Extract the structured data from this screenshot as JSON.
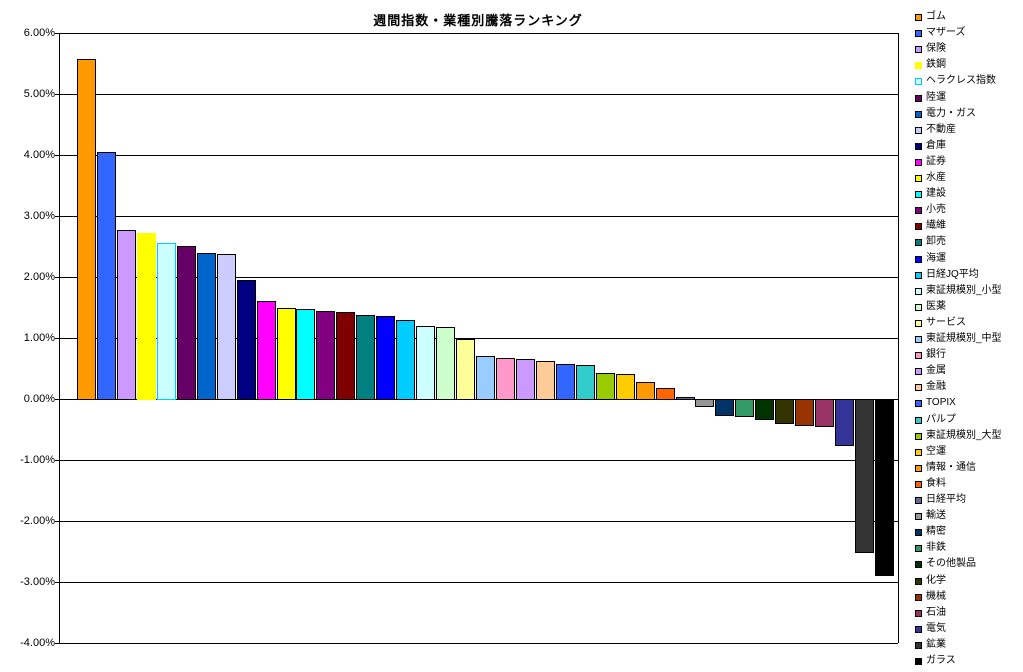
{
  "chart_data": {
    "type": "bar",
    "title": "週間指数・業種別騰落ランキング",
    "xlabel": "",
    "ylabel": "",
    "ylim": [
      -4,
      6
    ],
    "ytick_step": 1,
    "grid": true,
    "legend_position": "right",
    "y_tick_labels": [
      "6.00%",
      "5.00%",
      "4.00%",
      "3.00%",
      "2.00%",
      "1.00%",
      "0.00%",
      "-1.00%",
      "-2.00%",
      "-3.00%",
      "-4.00%"
    ],
    "categories": [
      "ゴム",
      "マザーズ",
      "保険",
      "鉄鋼",
      "ヘラクレス指数",
      "陸運",
      "電力・ガス",
      "不動産",
      "倉庫",
      "証券",
      "水産",
      "建設",
      "小売",
      "繊維",
      "卸売",
      "海運",
      "日経JQ平均",
      "東証規模別_小型",
      "医薬",
      "サービス",
      "東証規模別_中型",
      "銀行",
      "金属",
      "金融",
      "TOPIX",
      "パルプ",
      "東証規模別_大型",
      "空運",
      "情報・通信",
      "食料",
      "日経平均",
      "輸送",
      "精密",
      "非鉄",
      "その他製品",
      "化学",
      "機械",
      "石油",
      "電気",
      "鉱業",
      "ガラス"
    ],
    "values": [
      5.58,
      4.05,
      2.77,
      2.72,
      2.56,
      2.51,
      2.4,
      2.37,
      1.95,
      1.6,
      1.49,
      1.47,
      1.45,
      1.43,
      1.38,
      1.36,
      1.3,
      1.2,
      1.18,
      0.99,
      0.7,
      0.67,
      0.66,
      0.62,
      0.57,
      0.56,
      0.43,
      0.41,
      0.28,
      0.18,
      0.03,
      -0.12,
      -0.26,
      -0.28,
      -0.33,
      -0.4,
      -0.42,
      -0.44,
      -0.75,
      -2.51,
      -2.88
    ],
    "colors": [
      "#FF9900",
      "#3366FF",
      "#CC99FF",
      "#FFFF00",
      "#CCFFFF",
      "#660066",
      "#0066CC",
      "#CCCCFF",
      "#000080",
      "#FF00FF",
      "#FFFF00",
      "#00FFFF",
      "#800080",
      "#800000",
      "#008080",
      "#0000FF",
      "#00CCFF",
      "#CCFFFF",
      "#CCFFCC",
      "#FFFF99",
      "#99CCFF",
      "#FF99CC",
      "#CC99FF",
      "#FFCC99",
      "#3366FF",
      "#33CCCC",
      "#99CC00",
      "#FFCC00",
      "#FF9900",
      "#FF6600",
      "#666699",
      "#969696",
      "#003366",
      "#339966",
      "#003300",
      "#333300",
      "#993300",
      "#993366",
      "#333399",
      "#333333",
      "#000000"
    ],
    "border_colors": [
      "#000000",
      "#000000",
      "#000000",
      "#FFFF00",
      "#00CCFF",
      "#000000",
      "#000000",
      "#000000",
      "#000000",
      "#000000",
      "#000000",
      "#000000",
      "#000000",
      "#000000",
      "#000000",
      "#000000",
      "#000000",
      "#000000",
      "#000000",
      "#000000",
      "#000000",
      "#000000",
      "#000000",
      "#000000",
      "#000000",
      "#000000",
      "#000000",
      "#000000",
      "#000000",
      "#000000",
      "#000000",
      "#000000",
      "#000000",
      "#000000",
      "#000000",
      "#000000",
      "#000000",
      "#000000",
      "#000000",
      "#000000",
      "#000000"
    ],
    "axis_color": "#000000",
    "background_color": "#FFFFFF"
  }
}
